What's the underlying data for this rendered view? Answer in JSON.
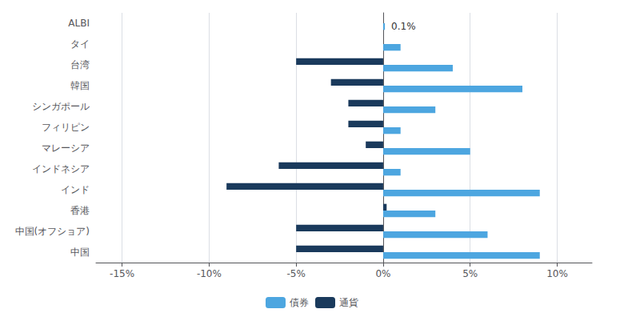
{
  "chart_data": {
    "type": "bar",
    "orientation": "horizontal",
    "categories": [
      "中国",
      "中国(オフショア)",
      "香港",
      "インド",
      "インドネシア",
      "マレーシア",
      "フィリピン",
      "シンガポール",
      "韓国",
      "台湾",
      "タイ",
      "ALBI"
    ],
    "series": [
      {
        "name": "債券",
        "color": "#4DA6E0",
        "values": [
          9.0,
          6.0,
          3.0,
          9.0,
          1.0,
          5.0,
          1.0,
          3.0,
          8.0,
          4.0,
          1.0,
          0.1
        ]
      },
      {
        "name": "通貨",
        "color": "#1A3A5C",
        "values": [
          -5.0,
          -5.0,
          0.2,
          -9.0,
          -6.0,
          -1.0,
          -2.0,
          -2.0,
          -3.0,
          -5.0,
          0.0,
          0.0
        ]
      }
    ],
    "xlim": [
      -16.5,
      12
    ],
    "xticks": [
      {
        "value": -15,
        "label": "-15%"
      },
      {
        "value": -10,
        "label": "-10%"
      },
      {
        "value": -5,
        "label": "-5%"
      },
      {
        "value": 0,
        "label": "0%"
      },
      {
        "value": 5,
        "label": "5%"
      },
      {
        "value": 10,
        "label": "10%"
      }
    ],
    "annotations": [
      {
        "text": "0.1%",
        "category": "ALBI",
        "series": "債券",
        "x": 0.1
      }
    ],
    "grid": true,
    "legend": "bottom"
  }
}
